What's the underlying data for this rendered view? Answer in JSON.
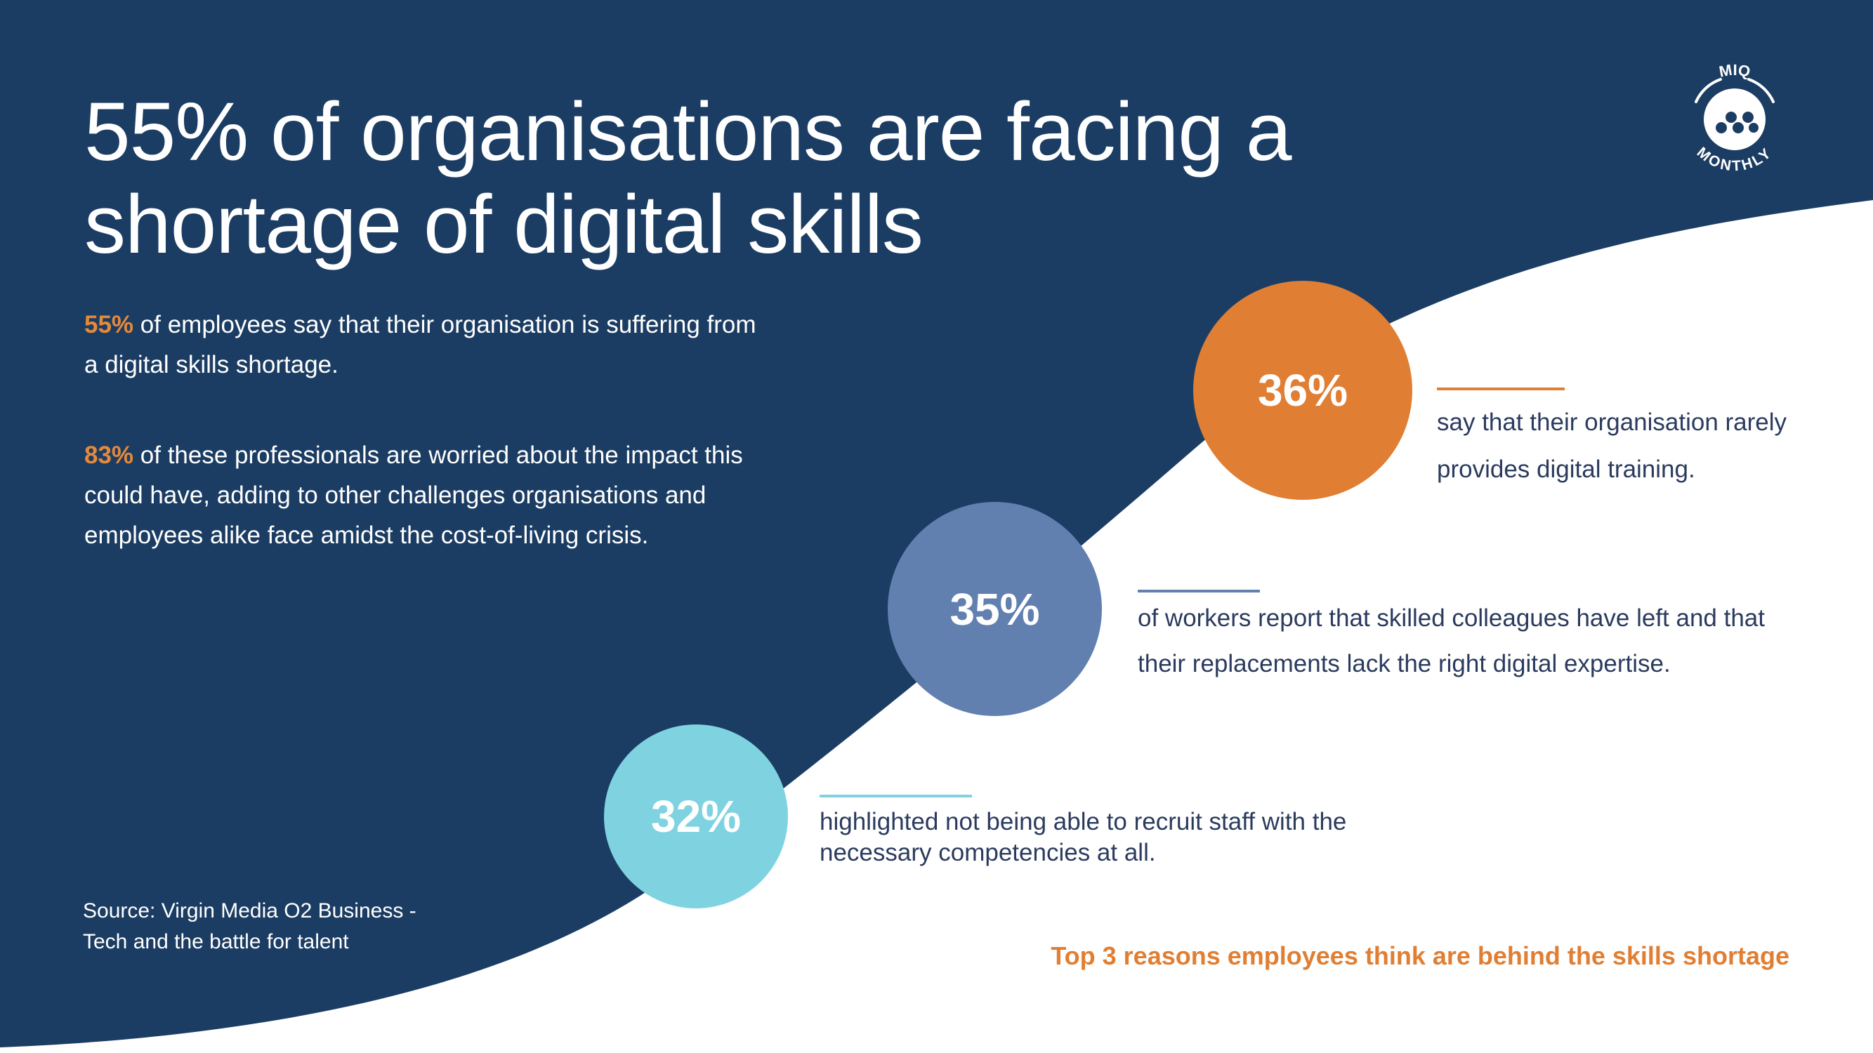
{
  "colors": {
    "navy": "#1c3d63",
    "orange": "#e07f33",
    "blue": "#6180b0",
    "light_blue": "#7fd3e1",
    "white": "#ffffff",
    "body_text": "#2b3b5e"
  },
  "title": "55% of organisations are facing a shortage of digital skills",
  "intro": [
    {
      "highlight": "55%",
      "text": " of employees say that their organisation is suffering from a digital skills shortage."
    },
    {
      "highlight": "83%",
      "text": " of these professionals are worried about the impact this could have, adding to other challenges organisations and employees alike face amidst the cost-of-living crisis."
    }
  ],
  "source": {
    "line1": "Source: Virgin Media O2 Business -",
    "line2": "Tech and the battle for talent"
  },
  "logo": {
    "top_text": "MIQ",
    "bottom_text": "MONTHLY",
    "icon": "miq-dots-icon"
  },
  "stats": [
    {
      "value": "36%",
      "text": "say that their organisation rarely provides digital training.",
      "color": "#e07f33"
    },
    {
      "value": "35%",
      "text": "of workers report that skilled colleagues have left and that their replacements lack the right digital expertise.",
      "color": "#6180b0"
    },
    {
      "value": "32%",
      "text": "highlighted not being able to recruit staff with the necessary competencies at all.",
      "color": "#7fd3e1"
    }
  ],
  "footer": "Top 3 reasons employees think are behind the skills shortage"
}
